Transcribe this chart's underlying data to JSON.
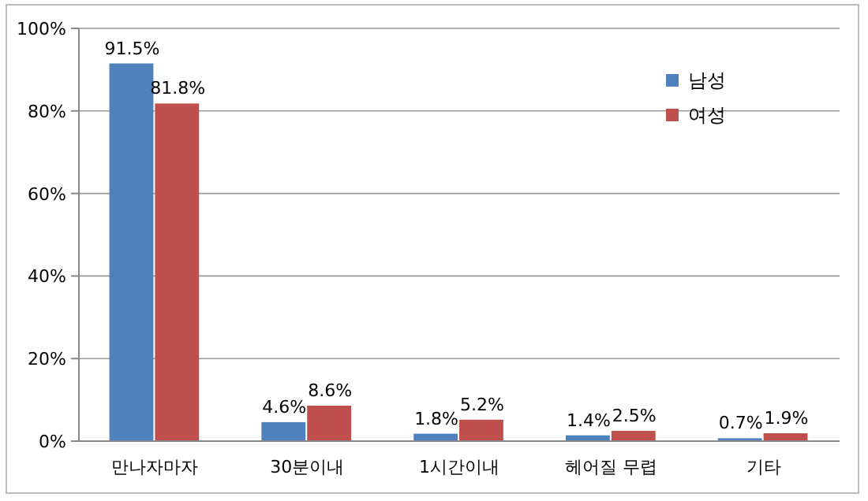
{
  "chart_data": {
    "type": "bar",
    "categories": [
      "만나자마자",
      "30분이내",
      "1시간이내",
      "헤어질 무렵",
      "기타"
    ],
    "series": [
      {
        "name": "남성",
        "color": "#4f81bd",
        "values": [
          91.5,
          4.6,
          1.8,
          1.4,
          0.7
        ],
        "value_labels": [
          "91.5%",
          "4.6%",
          "1.8%",
          "1.4%",
          "0.7%"
        ]
      },
      {
        "name": "여성",
        "color": "#c0504d",
        "values": [
          81.8,
          8.6,
          5.2,
          2.5,
          1.9
        ],
        "value_labels": [
          "81.8%",
          "8.6%",
          "5.2%",
          "2.5%",
          "1.9%"
        ]
      }
    ],
    "ylim": [
      0,
      100
    ],
    "yticks": [
      {
        "value": 0,
        "label": "0%"
      },
      {
        "value": 20,
        "label": "20%"
      },
      {
        "value": 40,
        "label": "40%"
      },
      {
        "value": 60,
        "label": "60%"
      },
      {
        "value": 80,
        "label": "80%"
      },
      {
        "value": 100,
        "label": "100%"
      }
    ],
    "grid": "y",
    "legend": "top right"
  }
}
